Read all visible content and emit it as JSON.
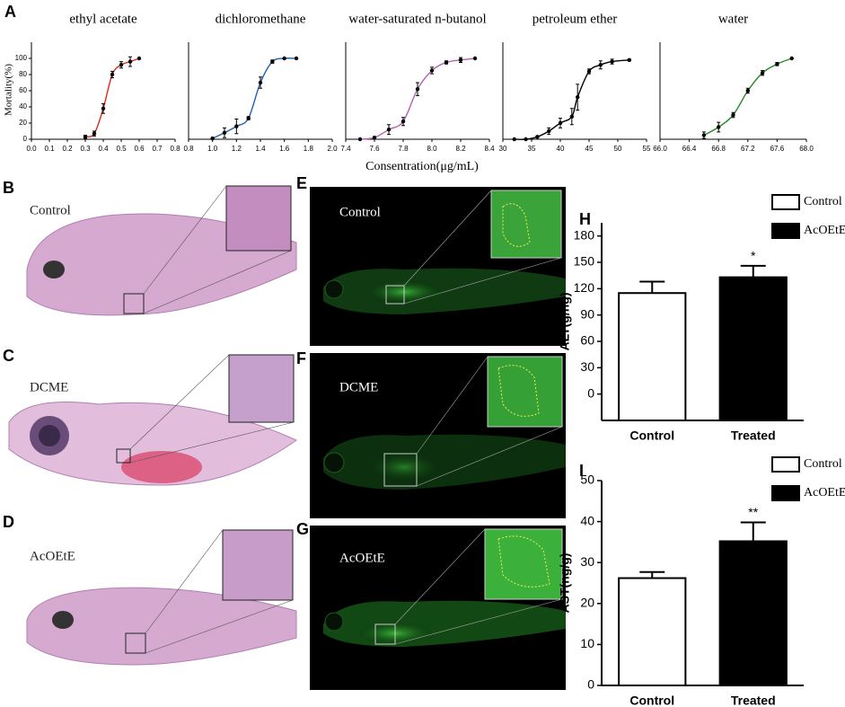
{
  "figure": {
    "panel_labels": [
      "A",
      "B",
      "C",
      "D",
      "E",
      "F",
      "G",
      "H",
      "I"
    ],
    "x_label": "Consentration(μg/mL)",
    "captions": [
      "Control",
      "DCME",
      "AcOEtE",
      "Control",
      "DCME",
      "AcOEtE"
    ]
  },
  "chart_data": [
    {
      "type": "line",
      "title": "ethyl acetate",
      "y_label": "Mortality(%)",
      "color": "#e0261e",
      "x": [
        0.3,
        0.35,
        0.4,
        0.45,
        0.5,
        0.55,
        0.6
      ],
      "values": [
        3,
        7,
        38,
        80,
        92,
        96,
        100
      ],
      "errors": [
        2,
        3,
        6,
        4,
        4,
        6,
        0
      ],
      "xlim": [
        0,
        0.8
      ],
      "xticks": [
        {
          "value": 0,
          "label": "0.0"
        },
        0.1,
        0.2,
        0.3,
        0.4,
        0.5,
        0.6,
        0.7,
        0.8
      ],
      "ylim": [
        0,
        120
      ],
      "yticks": [
        0,
        20,
        40,
        60,
        80,
        100
      ]
    },
    {
      "type": "line",
      "title": "dichloromethane",
      "color": "#1f5fae",
      "x": [
        1.0,
        1.1,
        1.2,
        1.3,
        1.4,
        1.5,
        1.6,
        1.7
      ],
      "values": [
        1,
        8,
        16,
        26,
        70,
        96,
        100,
        100
      ],
      "errors": [
        1,
        6,
        9,
        2,
        7,
        2,
        0,
        0
      ],
      "xlim": [
        0.8,
        2.0
      ],
      "xticks": [
        0.8,
        {
          "value": 1,
          "label": "1.0"
        },
        1.2,
        1.4,
        1.6,
        1.8,
        {
          "value": 2,
          "label": "2.0"
        }
      ],
      "ylim": [
        0,
        120
      ]
    },
    {
      "type": "line",
      "title": "water-saturated n-butanol",
      "color": "#b060b0",
      "x": [
        7.5,
        7.6,
        7.7,
        7.8,
        7.9,
        8.0,
        8.1,
        8.2,
        8.3
      ],
      "values": [
        0,
        2,
        12,
        22,
        62,
        85,
        95,
        98,
        100
      ],
      "errors": [
        0,
        1,
        6,
        5,
        8,
        4,
        2,
        3,
        0
      ],
      "xlim": [
        7.4,
        8.4
      ],
      "xticks": [
        7.4,
        7.6,
        7.8,
        {
          "value": 8,
          "label": "8.0"
        },
        8.2,
        8.4
      ],
      "ylim": [
        0,
        120
      ]
    },
    {
      "type": "line",
      "title": "petroleum ether",
      "color": "#000000",
      "x": [
        32,
        34,
        36,
        38,
        40,
        42,
        43,
        45,
        47,
        49,
        52
      ],
      "values": [
        0,
        0,
        3,
        10,
        20,
        28,
        52,
        84,
        92,
        96,
        98
      ],
      "errors": [
        0,
        0,
        1,
        4,
        6,
        10,
        16,
        3,
        5,
        3,
        1
      ],
      "xlim": [
        30,
        55
      ],
      "xticks": [
        30,
        35,
        40,
        45,
        50,
        55
      ],
      "ylim": [
        0,
        120
      ]
    },
    {
      "type": "line",
      "title": "water",
      "color": "#2a8a2a",
      "x": [
        66.6,
        66.8,
        67.0,
        67.2,
        67.4,
        67.6,
        67.8
      ],
      "values": [
        5,
        15,
        30,
        60,
        82,
        93,
        100
      ],
      "errors": [
        4,
        6,
        3,
        3,
        3,
        2,
        0
      ],
      "xlim": [
        66,
        68
      ],
      "xticks": [
        {
          "value": 66,
          "label": "66.0"
        },
        66.4,
        66.8,
        67.2,
        67.6,
        {
          "value": 68,
          "label": "68.0"
        }
      ],
      "ylim": [
        0,
        120
      ]
    },
    {
      "type": "bar",
      "y_label": "ALT(g/ng)",
      "categories": [
        "Control",
        "Treated"
      ],
      "values": [
        115,
        133
      ],
      "errors": [
        13,
        13
      ],
      "colors": [
        "#ffffff",
        "#000000"
      ],
      "legend": [
        "Control",
        "AcOEtE"
      ],
      "annotation": "*",
      "ylim": [
        -30,
        195
      ],
      "yticks": [
        0,
        30,
        60,
        90,
        120,
        150,
        180
      ]
    },
    {
      "type": "bar",
      "y_label": "AST(ng/g)",
      "categories": [
        "Control",
        "Treated"
      ],
      "values": [
        26.2,
        35.2
      ],
      "errors": [
        1.5,
        4.6
      ],
      "colors": [
        "#ffffff",
        "#000000"
      ],
      "legend": [
        "Control",
        "AcOEtE"
      ],
      "annotation": "**",
      "ylim": [
        0,
        50
      ],
      "yticks": [
        0,
        10,
        20,
        30,
        40,
        50
      ]
    }
  ]
}
